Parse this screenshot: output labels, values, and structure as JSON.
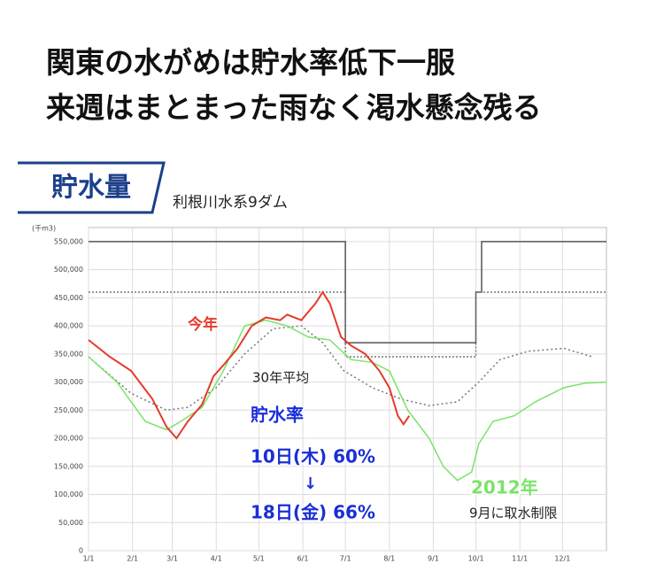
{
  "headline": [
    "関東の水がめは貯水率低下一服",
    "来週はまとまった雨なく渇水懸念残る"
  ],
  "chart_data": {
    "type": "line",
    "title": "貯水量",
    "subtitle": "利根川水系9ダム",
    "y_unit": "(千m3)",
    "xlim": [
      0,
      365
    ],
    "ylim": [
      0,
      575000
    ],
    "grid": true,
    "xticks": [
      {
        "value": 0,
        "label": "1/1"
      },
      {
        "value": 31,
        "label": "2/1"
      },
      {
        "value": 59,
        "label": "3/1"
      },
      {
        "value": 90,
        "label": "4/1"
      },
      {
        "value": 120,
        "label": "5/1"
      },
      {
        "value": 151,
        "label": "6/1"
      },
      {
        "value": 181,
        "label": "7/1"
      },
      {
        "value": 212,
        "label": "8/1"
      },
      {
        "value": 243,
        "label": "9/1"
      },
      {
        "value": 273,
        "label": "10/1"
      },
      {
        "value": 304,
        "label": "11/1"
      },
      {
        "value": 334,
        "label": "12/1"
      }
    ],
    "yticks": [
      0,
      {
        "value": 50000,
        "label": "50,000"
      },
      {
        "value": 100000,
        "label": "100,000"
      },
      {
        "value": 150000,
        "label": "150,000"
      },
      {
        "value": 200000,
        "label": "200,000"
      },
      {
        "value": 250000,
        "label": "250,000"
      },
      {
        "value": 300000,
        "label": "300,000"
      },
      {
        "value": 350000,
        "label": "350,000"
      },
      {
        "value": 400000,
        "label": "400,000"
      },
      {
        "value": 450000,
        "label": "450,000"
      },
      {
        "value": 500000,
        "label": "500,000"
      },
      {
        "value": 550000,
        "label": "550,000"
      }
    ],
    "series": [
      {
        "color": "#555555",
        "width": 1.5,
        "dash": "",
        "x": [
          0,
          181,
          181,
          273,
          273,
          277,
          277,
          365
        ],
        "values": [
          550000,
          550000,
          370000,
          370000,
          460000,
          460000,
          550000,
          550000
        ]
      },
      {
        "color": "#777777",
        "width": 1.5,
        "dash": "2,2",
        "x": [
          0,
          181,
          181,
          273,
          273,
          365
        ],
        "values": [
          460000,
          460000,
          345000,
          345000,
          460000,
          460000
        ]
      },
      {
        "name": "30年平均",
        "color": "#777777",
        "width": 1.5,
        "dash": "2,3",
        "x": [
          0,
          30,
          55,
          70,
          90,
          110,
          130,
          150,
          165,
          180,
          200,
          220,
          240,
          260,
          275,
          290,
          310,
          335,
          355
        ],
        "values": [
          345000,
          280000,
          250000,
          255000,
          290000,
          350000,
          395000,
          400000,
          370000,
          320000,
          290000,
          270000,
          258000,
          265000,
          300000,
          340000,
          355000,
          360000,
          345000
        ]
      },
      {
        "name": "2012年",
        "color": "#7be36a",
        "width": 1.5,
        "dash": "",
        "x": [
          0,
          20,
          40,
          55,
          65,
          80,
          95,
          110,
          125,
          140,
          155,
          170,
          185,
          200,
          212,
          225,
          240,
          250,
          260,
          270,
          275,
          285,
          300,
          315,
          335,
          350,
          365
        ],
        "values": [
          345000,
          300000,
          230000,
          215000,
          230000,
          255000,
          320000,
          400000,
          410000,
          400000,
          380000,
          375000,
          340000,
          335000,
          320000,
          250000,
          200000,
          150000,
          125000,
          140000,
          190000,
          230000,
          240000,
          265000,
          290000,
          298000,
          300000
        ]
      },
      {
        "name": "今年",
        "color": "#e53a2a",
        "width": 2,
        "dash": "",
        "x": [
          0,
          15,
          30,
          45,
          55,
          62,
          70,
          80,
          88,
          95,
          105,
          115,
          125,
          135,
          140,
          150,
          160,
          165,
          170,
          178,
          185,
          195,
          205,
          212,
          218,
          222,
          226
        ],
        "values": [
          375000,
          345000,
          320000,
          270000,
          220000,
          200000,
          230000,
          260000,
          310000,
          330000,
          360000,
          400000,
          415000,
          410000,
          420000,
          410000,
          440000,
          460000,
          440000,
          380000,
          365000,
          350000,
          320000,
          290000,
          240000,
          225000,
          240000
        ]
      }
    ],
    "annotations": [
      {
        "text": "貯水率",
        "color": "#1a2fd6"
      },
      {
        "text": "10日(木) 60%",
        "color": "#1a2fd6"
      },
      {
        "text": "↓",
        "color": "#1a2fd6"
      },
      {
        "text": "18日(金) 66%",
        "color": "#1a2fd6"
      },
      {
        "text": "9月に取水制限",
        "color": "#222222"
      }
    ]
  }
}
